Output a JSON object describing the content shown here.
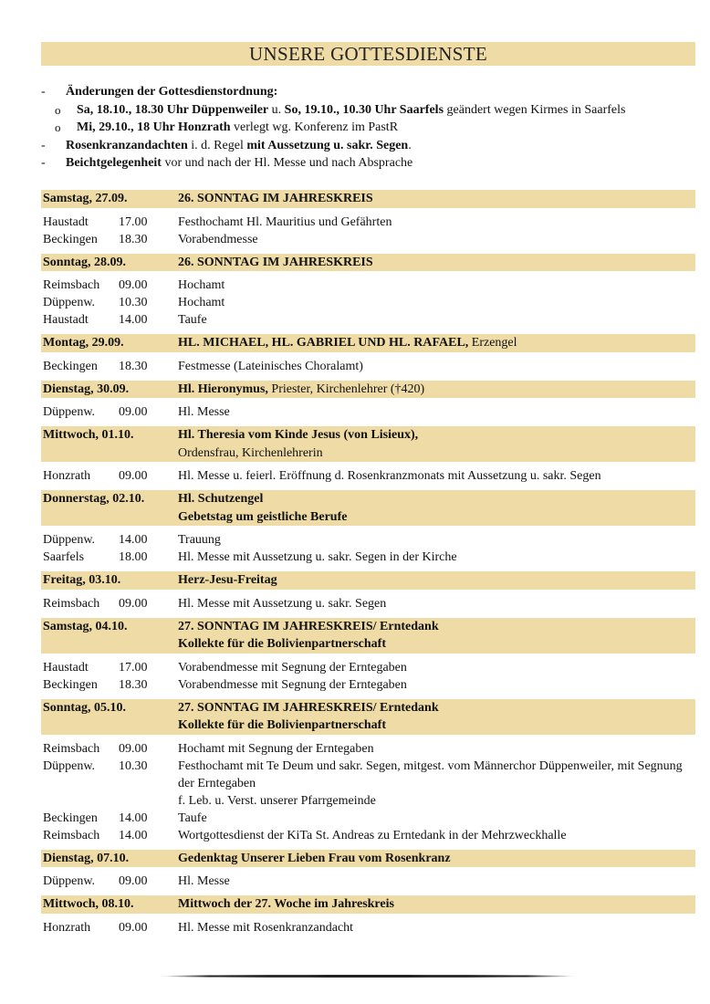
{
  "title": "UNSERE GOTTESDIENSTE",
  "notes": [
    {
      "level": 1,
      "marker": "-",
      "segments": [
        {
          "t": "Änderungen der Gottesdienstordnung:",
          "b": true
        }
      ]
    },
    {
      "level": 2,
      "marker": "o",
      "segments": [
        {
          "t": "Sa, 18.10., 18.30 Uhr Düppenweiler",
          "b": true
        },
        {
          "t": " u. ",
          "b": false
        },
        {
          "t": "So, 19.10., 10.30 Uhr Saarfels",
          "b": true
        },
        {
          "t": " geändert wegen Kirmes in Saarfels",
          "b": false
        }
      ]
    },
    {
      "level": 2,
      "marker": "o",
      "segments": [
        {
          "t": "Mi, 29.10., 18 Uhr Honzrath",
          "b": true
        },
        {
          "t": " verlegt wg. Konferenz im PastR",
          "b": false
        }
      ]
    },
    {
      "level": 1,
      "marker": "-",
      "segments": [
        {
          "t": "Rosenkranzandachten",
          "b": true
        },
        {
          "t": " i. d. Regel ",
          "b": false
        },
        {
          "t": "mit Aussetzung u. sakr. Segen",
          "b": true
        },
        {
          "t": ".",
          "b": false
        }
      ]
    },
    {
      "level": 1,
      "marker": "-",
      "segments": [
        {
          "t": "Beichtgelegenheit",
          "b": true
        },
        {
          "t": " vor und nach der Hl. Messe und nach Absprache",
          "b": false
        }
      ]
    }
  ],
  "days": [
    {
      "date": "Samstag, 27.09.",
      "title": [
        [
          {
            "t": "26. SONNTAG IM JAHRESKREIS",
            "b": true
          }
        ]
      ],
      "entries": [
        {
          "place": "Haustadt",
          "time": "17.00",
          "desc": "Festhochamt Hl. Mauritius und Gefährten"
        },
        {
          "place": "Beckingen",
          "time": "18.30",
          "desc": "Vorabendmesse"
        }
      ]
    },
    {
      "date": "Sonntag, 28.09.",
      "title": [
        [
          {
            "t": "26. SONNTAG IM JAHRESKREIS",
            "b": true
          }
        ]
      ],
      "entries": [
        {
          "place": "Reimsbach",
          "time": "09.00",
          "desc": "Hochamt"
        },
        {
          "place": "Düppenw.",
          "time": "10.30",
          "desc": "Hochamt"
        },
        {
          "place": "Haustadt",
          "time": "14.00",
          "desc": "Taufe"
        }
      ]
    },
    {
      "date": "Montag, 29.09.",
      "title": [
        [
          {
            "t": "HL. MICHAEL, HL. GABRIEL UND HL. RAFAEL,",
            "b": true
          },
          {
            "t": " Erzengel",
            "b": false
          }
        ]
      ],
      "entries": [
        {
          "place": "Beckingen",
          "time": "18.30",
          "desc": "Festmesse (Lateinisches Choralamt)"
        }
      ]
    },
    {
      "date": "Dienstag, 30.09.",
      "title": [
        [
          {
            "t": "Hl. Hieronymus,",
            "b": true
          },
          {
            "t": " Priester, Kirchenlehrer (†420)",
            "b": false
          }
        ]
      ],
      "entries": [
        {
          "place": "Düppenw.",
          "time": "09.00",
          "desc": "Hl. Messe"
        }
      ]
    },
    {
      "date": "Mittwoch, 01.10.",
      "title": [
        [
          {
            "t": "Hl. Theresia vom Kinde Jesus (von Lisieux),",
            "b": true
          }
        ],
        [
          {
            "t": "Ordensfrau, Kirchenlehrerin",
            "b": false
          }
        ]
      ],
      "entries": [
        {
          "place": "Honzrath",
          "time": "09.00",
          "desc": "Hl. Messe u. feierl. Eröffnung d. Rosenkranzmonats mit Aussetzung u. sakr. Segen"
        }
      ]
    },
    {
      "date": "Donnerstag, 02.10.",
      "title": [
        [
          {
            "t": "Hl. Schutzengel",
            "b": true
          }
        ],
        [
          {
            "t": "Gebetstag um geistliche Berufe",
            "b": true
          }
        ]
      ],
      "entries": [
        {
          "place": "Düppenw.",
          "time": "14.00",
          "desc": "Trauung"
        },
        {
          "place": "Saarfels",
          "time": "18.00",
          "desc": "Hl. Messe mit Aussetzung u. sakr. Segen in der Kirche"
        }
      ]
    },
    {
      "date": "Freitag, 03.10.",
      "title": [
        [
          {
            "t": "Herz-Jesu-Freitag",
            "b": true
          }
        ]
      ],
      "entries": [
        {
          "place": "Reimsbach",
          "time": "09.00",
          "desc": "Hl. Messe mit Aussetzung u. sakr. Segen"
        }
      ]
    },
    {
      "date": "Samstag, 04.10.",
      "title": [
        [
          {
            "t": "27. SONNTAG IM JAHRESKREIS/ Erntedank",
            "b": true
          }
        ],
        [
          {
            "t": "Kollekte für die Bolivienpartnerschaft",
            "b": true
          }
        ]
      ],
      "entries": [
        {
          "place": "Haustadt",
          "time": "17.00",
          "desc": "Vorabendmesse mit Segnung der Erntegaben"
        },
        {
          "place": "Beckingen",
          "time": "18.30",
          "desc": "Vorabendmesse mit Segnung der Erntegaben"
        }
      ]
    },
    {
      "date": "Sonntag, 05.10.",
      "title": [
        [
          {
            "t": "27. SONNTAG IM JAHRESKREIS/ Erntedank",
            "b": true
          }
        ],
        [
          {
            "t": "Kollekte für die Bolivienpartnerschaft",
            "b": true
          }
        ]
      ],
      "entries": [
        {
          "place": "Reimsbach",
          "time": "09.00",
          "desc": "Hochamt mit Segnung der Erntegaben"
        },
        {
          "place": "Düppenw.",
          "time": "10.30",
          "desc": "Festhochamt mit Te Deum und sakr. Segen, mitgest. vom Männerchor Düppenweiler, mit Segnung der Erntegaben"
        },
        {
          "place": "",
          "time": "",
          "desc": "f. Leb. u. Verst. unserer Pfarrgemeinde"
        },
        {
          "place": "Beckingen",
          "time": "14.00",
          "desc": "Taufe"
        },
        {
          "place": "Reimsbach",
          "time": "14.00",
          "desc": "Wortgottesdienst der KiTa St. Andreas zu Erntedank in der Mehrzweckhalle"
        }
      ]
    },
    {
      "date": "Dienstag, 07.10.",
      "title": [
        [
          {
            "t": "Gedenktag Unserer Lieben Frau vom Rosenkranz",
            "b": true
          }
        ]
      ],
      "entries": [
        {
          "place": "Düppenw.",
          "time": "09.00",
          "desc": "Hl. Messe"
        }
      ]
    },
    {
      "date": "Mittwoch, 08.10.",
      "title": [
        [
          {
            "t": "Mittwoch der 27. Woche im Jahreskreis",
            "b": true
          }
        ]
      ],
      "entries": [
        {
          "place": "Honzrath",
          "time": "09.00",
          "desc": "Hl. Messe mit Rosenkranzandacht"
        }
      ]
    }
  ]
}
